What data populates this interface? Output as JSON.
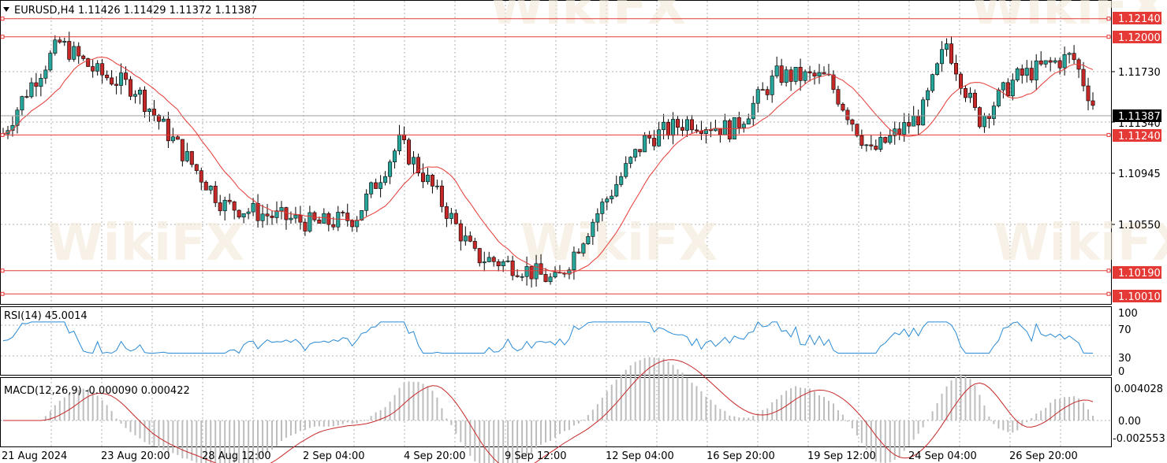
{
  "header": {
    "symbol_line": "EURUSD,H4  1.11426 1.11429 1.11372 1.11387"
  },
  "price_axis": {
    "ticks": [
      "1.11730",
      "1.11340",
      "1.10945",
      "1.10550"
    ],
    "current_price_label": "1.11387"
  },
  "levels": [
    {
      "label": "1.12140",
      "value": 1.1214
    },
    {
      "label": "1.12000",
      "value": 1.12
    },
    {
      "label": "1.11240",
      "value": 1.1124
    },
    {
      "label": "1.10190",
      "value": 1.1019
    },
    {
      "label": "1.10010",
      "value": 1.1001
    }
  ],
  "rsi": {
    "label": "RSI(14) 45.0014",
    "ticks": [
      "100",
      "70",
      "30",
      "0"
    ]
  },
  "macd": {
    "label": "MACD(12,26,9) -0.000090 0.000422",
    "ticks": [
      "0.004028",
      "0.00",
      "-0.002553"
    ]
  },
  "time_axis": {
    "labels": [
      "21 Aug 2024",
      "23 Aug 20:00",
      "28 Aug 12:00",
      "2 Sep 04:00",
      "4 Sep 20:00",
      "9 Sep 12:00",
      "12 Sep 04:00",
      "16 Sep 20:00",
      "19 Sep 12:00",
      "24 Sep 04:00",
      "26 Sep 20:00"
    ]
  },
  "watermark": "WikiFX",
  "colors": {
    "bull": "#26a69a",
    "bear": "#c62828",
    "level": "#e53935",
    "ma": "#e53935",
    "rsi": "#2a8ad4",
    "macd_hist": "#bdbdbd",
    "macd_signal": "#c62828"
  }
}
